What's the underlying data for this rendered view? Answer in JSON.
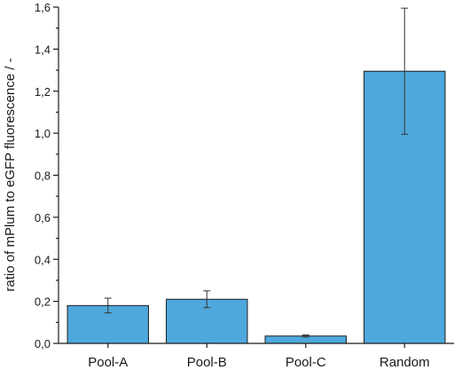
{
  "chart_data": {
    "type": "bar",
    "title": "",
    "xlabel": "",
    "ylabel": "ratio of mPlum to eGFP fluorescence / -",
    "categories": [
      "Pool-A",
      "Pool-B",
      "Pool-C",
      "Random"
    ],
    "values": [
      0.18,
      0.21,
      0.035,
      1.295
    ],
    "errors": [
      0.035,
      0.04,
      0.005,
      0.3
    ],
    "ylim": [
      0,
      1.6
    ],
    "yticks": [
      0.0,
      0.2,
      0.4,
      0.6,
      0.8,
      1.0,
      1.2,
      1.4,
      1.6
    ],
    "ytick_labels": [
      "0,0",
      "0,2",
      "0,4",
      "0,6",
      "0,8",
      "1,0",
      "1,2",
      "1,4",
      "1,6"
    ],
    "bar_color": "#4ea8dc",
    "grid": false,
    "legend": "none"
  }
}
